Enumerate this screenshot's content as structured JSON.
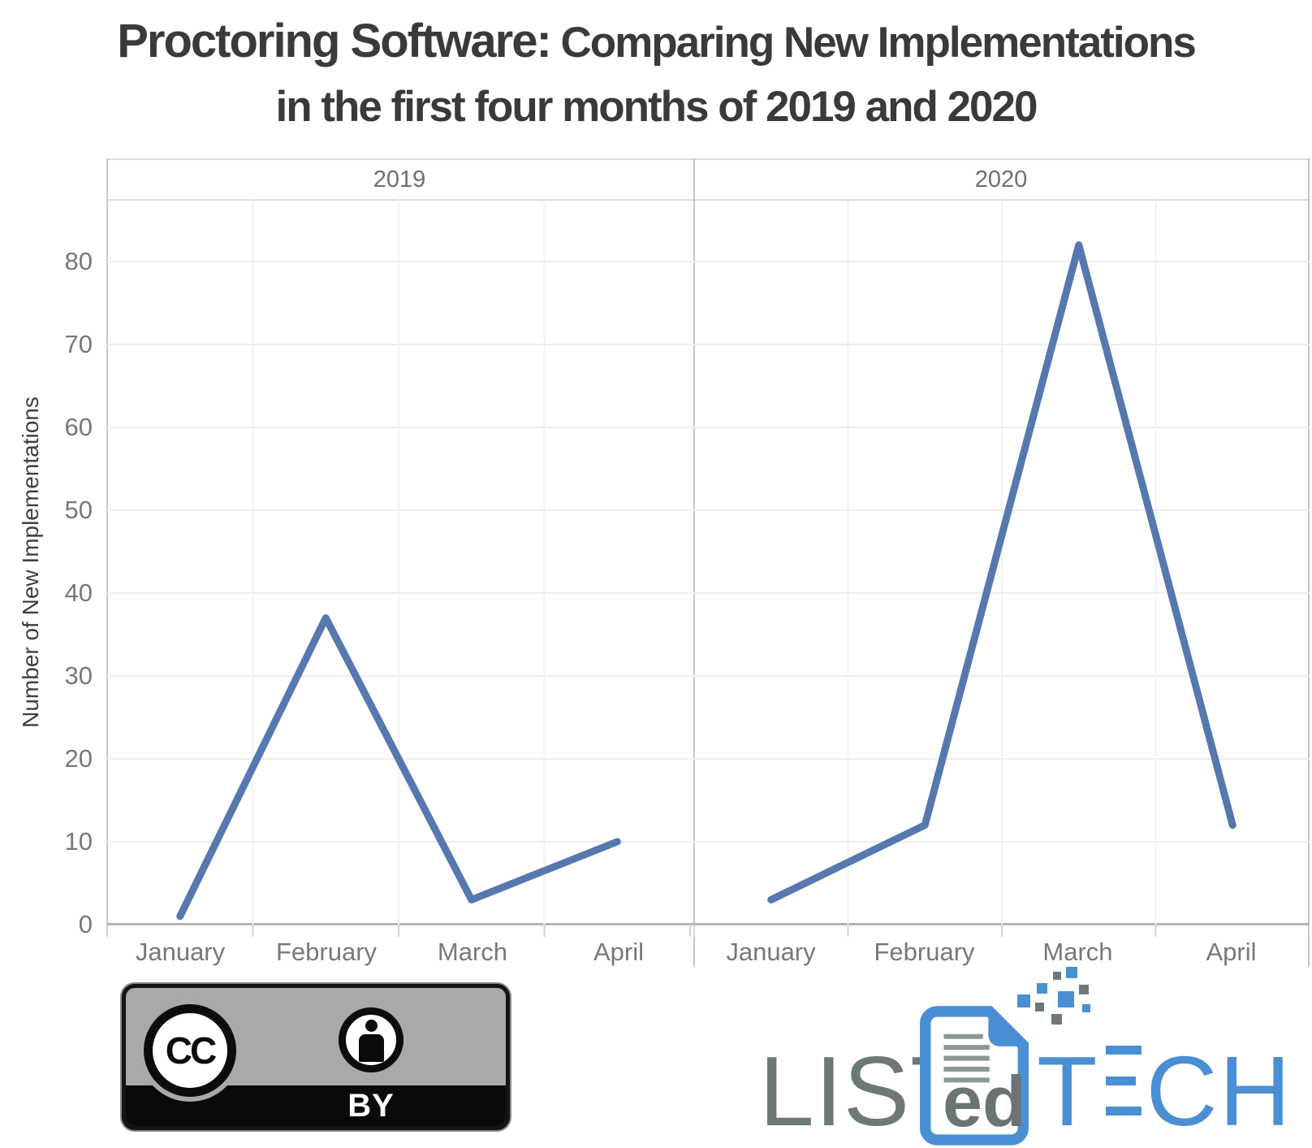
{
  "title": {
    "part1": "Proctoring Software:",
    "part2": " Comparing New Implementations",
    "line2": "in the first four months of 2019 and 2020"
  },
  "chart_data": {
    "type": "line",
    "title": "Proctoring Software: Comparing New Implementations in the first four months of 2019 and 2020",
    "ylabel": "Number of New Implementations",
    "xlabel": "",
    "categories": [
      "January",
      "February",
      "March",
      "April"
    ],
    "panels": [
      {
        "label": "2019",
        "values": [
          1,
          37,
          3,
          10
        ]
      },
      {
        "label": "2020",
        "values": [
          3,
          12,
          82,
          12
        ]
      }
    ],
    "yticks": [
      0,
      10,
      20,
      30,
      40,
      50,
      60,
      70,
      80
    ],
    "ylim": [
      0,
      87
    ],
    "grid": true,
    "legend": "none",
    "series_color": "#5578ae"
  },
  "footer": {
    "cc_label": "CC",
    "by_label": "BY",
    "logo_list": "LIST",
    "logo_ed": "ed",
    "logo_tech_t": "T",
    "logo_tech_ch": "CH"
  },
  "colors": {
    "line_blue": "#5578ae",
    "grid": "#ededed",
    "axis_text": "#787878",
    "title_text": "#3a3a3a",
    "logo_blue": "#4a8fd3",
    "logo_gray": "#6d7979",
    "badge_gray": "#a9a9a9"
  }
}
